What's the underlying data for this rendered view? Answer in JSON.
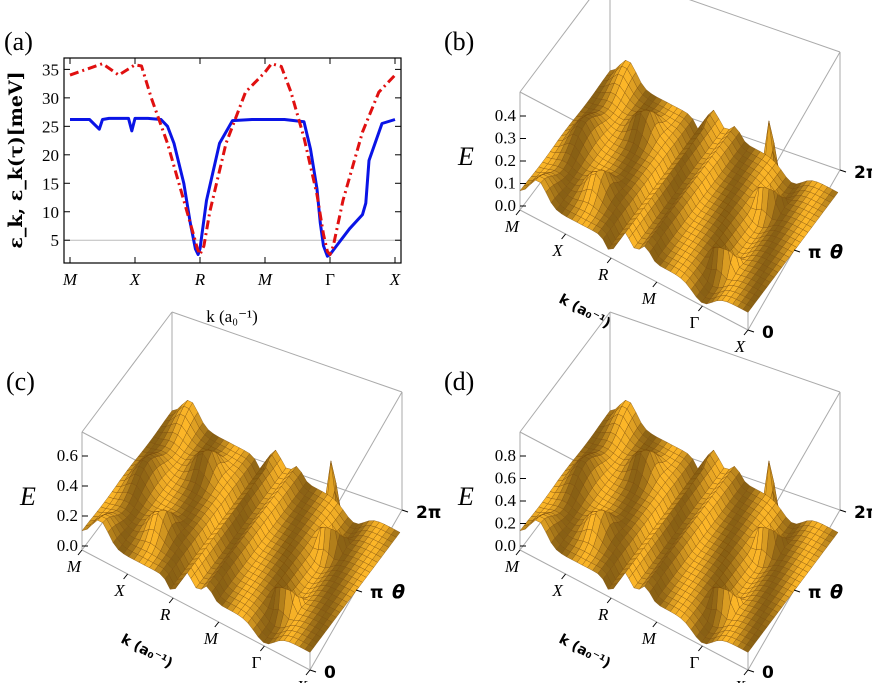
{
  "panel_labels": [
    "(a)",
    "(b)",
    "(c)",
    "(d)"
  ],
  "colors": {
    "dispersion": "#0a14e6",
    "tau": "#e01010",
    "surface": "#e8b020",
    "surface_edge": "#7a4a08"
  },
  "chart_data": [
    {
      "type": "line",
      "panel": "(a)",
      "ylabel": "ε_k, ε_k(τ)[meV]",
      "xlabel": "k (a₀⁻¹)",
      "x_ticks": [
        "M",
        "X",
        "R",
        "M",
        "Γ",
        "X"
      ],
      "y_ticks": [
        "5",
        "10",
        "15",
        "20",
        "25",
        "30",
        "35"
      ],
      "ylim": [
        1,
        37
      ],
      "reference_line": 5,
      "series": [
        {
          "name": "ε_k",
          "style": "solid",
          "x": [
            0,
            0.1,
            0.3,
            0.45,
            0.5,
            0.6,
            0.8,
            0.9,
            0.95,
            1.0,
            1.2,
            1.4,
            1.5,
            1.6,
            1.75,
            1.85,
            1.93,
            1.97,
            2.0,
            2.1,
            2.3,
            2.5,
            2.8,
            3.0,
            3.2,
            3.3,
            3.6,
            3.7,
            3.8,
            3.85,
            3.9,
            3.96,
            4.0,
            4.1,
            4.3,
            4.5,
            4.55,
            4.6,
            4.8,
            5.0
          ],
          "y": [
            26.2,
            26.2,
            26.2,
            24.5,
            26.2,
            26.4,
            26.4,
            26.4,
            24.2,
            26.4,
            26.4,
            26.2,
            25,
            22,
            15,
            8,
            3.5,
            2.5,
            3.5,
            12,
            22,
            26,
            26.2,
            26.2,
            26.2,
            26.2,
            25.8,
            21,
            14,
            8,
            4,
            2.2,
            2.5,
            4,
            7,
            9.5,
            11.5,
            19,
            25.5,
            26.2
          ]
        },
        {
          "name": "ε_k(τ)",
          "style": "dashed",
          "x": [
            0,
            0.2,
            0.5,
            0.75,
            1.0,
            1.1,
            1.25,
            1.5,
            1.75,
            1.9,
            1.96,
            2.0,
            2.06,
            2.15,
            2.4,
            2.7,
            3.0,
            3.1,
            3.25,
            3.4,
            3.6,
            3.8,
            3.9,
            3.96,
            4.0,
            4.05,
            4.2,
            4.5,
            4.75,
            5.0
          ],
          "y": [
            34,
            34.8,
            36,
            34,
            35.8,
            35.6,
            30,
            22,
            12,
            6,
            3.5,
            2.5,
            4,
            10,
            22,
            31,
            34.5,
            36,
            35.5,
            31,
            23,
            13,
            6,
            3,
            2.5,
            4,
            12,
            24,
            31,
            34
          ]
        }
      ]
    },
    {
      "type": "surface",
      "panel": "(b)",
      "zlabel": "E",
      "z_ticks": [
        "0.0",
        "0.1",
        "0.2",
        "0.3",
        "0.4"
      ],
      "k_ticks": [
        "M",
        "X",
        "R",
        "M",
        "Γ",
        "X"
      ],
      "k_label": "k (a₀⁻¹)",
      "theta_ticks": [
        "0",
        "π",
        "2π"
      ],
      "theta_label": "θ"
    },
    {
      "type": "surface",
      "panel": "(c)",
      "zlabel": "E",
      "z_ticks": [
        "0.0",
        "0.2",
        "0.4",
        "0.6"
      ],
      "k_ticks": [
        "M",
        "X",
        "R",
        "M",
        "Γ",
        "X"
      ],
      "k_label": "k (a₀⁻¹)",
      "theta_ticks": [
        "0",
        "π",
        "2π"
      ],
      "theta_label": "θ"
    },
    {
      "type": "surface",
      "panel": "(d)",
      "zlabel": "E",
      "z_ticks": [
        "0.0",
        "0.2",
        "0.4",
        "0.6",
        "0.8"
      ],
      "k_ticks": [
        "M",
        "X",
        "R",
        "M",
        "Γ",
        "X"
      ],
      "k_label": "k (a₀⁻¹)",
      "theta_ticks": [
        "0",
        "π",
        "2π"
      ],
      "theta_label": "θ"
    }
  ]
}
